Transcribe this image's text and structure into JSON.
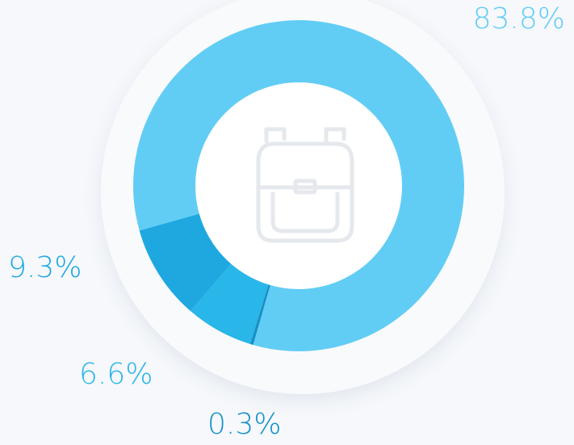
{
  "chart_data": {
    "type": "donut",
    "values": [
      83.8,
      0.3,
      6.6,
      9.3
    ],
    "value_labels": [
      "83.8%",
      "0.3%",
      "6.6%",
      "9.3%"
    ],
    "colors": [
      "#62cdf4",
      "#1590c8",
      "#29b6e8",
      "#1fa8e0"
    ]
  }
}
